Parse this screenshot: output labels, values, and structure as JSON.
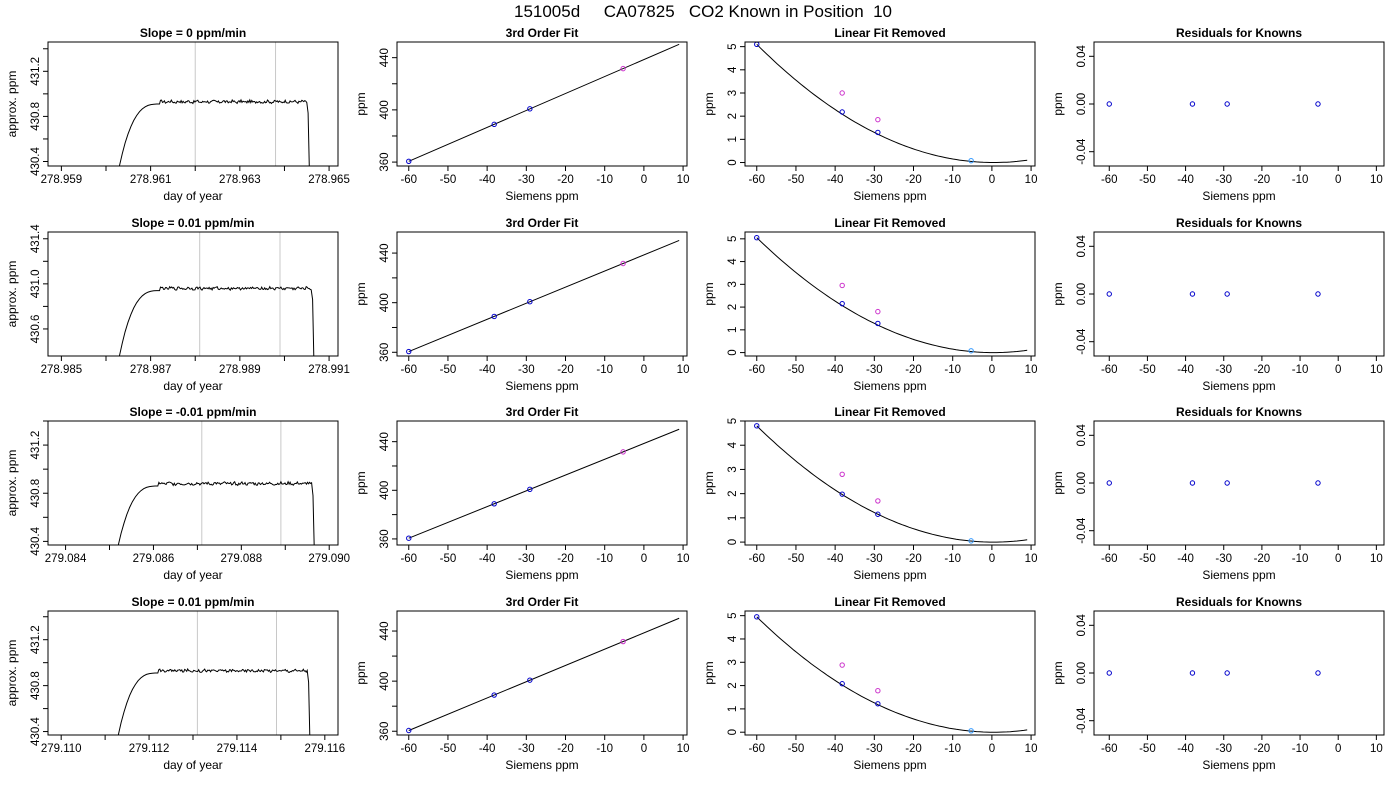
{
  "title": "151005d     CA07825   CO2 Known in Position  10",
  "colors": {
    "line": "#000000",
    "grid_vline": "#c8c8c8",
    "known_point": "#0000cc",
    "ref_point": "#cc33cc",
    "near_zero_point": "#3399ff"
  },
  "chart_data": [
    {
      "panel": "row1-trace",
      "type": "line",
      "title": "Slope =  0  ppm/min",
      "xlabel": "day of year",
      "ylabel": "approx. ppm",
      "xlim": [
        278.9587,
        278.9652
      ],
      "ylim": [
        430.36,
        431.46
      ],
      "xticks": [
        278.959,
        278.961,
        278.963,
        278.965
      ],
      "xticklabels": [
        "278.959",
        "278.961",
        "278.963",
        "278.965"
      ],
      "xminor": [
        278.96,
        278.962,
        278.964
      ],
      "yticks": [
        430.4,
        430.8,
        431.2
      ],
      "yticklabels": [
        "430.4",
        "430.8",
        "431.2"
      ],
      "yminor": [
        430.6,
        431.0,
        431.4
      ],
      "vlines": [
        278.962,
        278.9638
      ],
      "trace": {
        "start": 278.9603,
        "rise_end": 278.9608,
        "plateau_start": 278.9612,
        "end": 278.9645,
        "level": 430.93,
        "base": 430.36,
        "noise": 0.012
      }
    },
    {
      "panel": "row1-fit",
      "type": "scatter",
      "title": "3rd Order Fit",
      "xlabel": "Siemens ppm",
      "ylabel": "ppm",
      "xlim": [
        -63,
        11
      ],
      "ylim": [
        357,
        452
      ],
      "xticks": [
        -60,
        -50,
        -40,
        -30,
        -20,
        -10,
        0,
        10
      ],
      "xticklabels": [
        "-60",
        "-50",
        "-40",
        "-30",
        "-20",
        "-10",
        "0",
        "10"
      ],
      "yticks": [
        360,
        400,
        440
      ],
      "yticklabels": [
        "360",
        "400",
        "440"
      ],
      "yminor": [
        380,
        420
      ],
      "line": {
        "x": [
          -60,
          9
        ],
        "y": [
          360.6,
          450.2
        ]
      },
      "points": [
        {
          "x": -60.0,
          "y": 360.6,
          "kind": "known"
        },
        {
          "x": -38.2,
          "y": 388.9,
          "kind": "known"
        },
        {
          "x": -29.1,
          "y": 400.8,
          "kind": "known"
        },
        {
          "x": -5.3,
          "y": 431.6,
          "kind": "ref"
        }
      ]
    },
    {
      "panel": "row1-linear",
      "type": "scatter",
      "title": "Linear Fit Removed",
      "xlabel": "Siemens ppm",
      "ylabel": "ppm",
      "xlim": [
        -63,
        11
      ],
      "ylim": [
        -0.15,
        5.2
      ],
      "xticks": [
        -60,
        -50,
        -40,
        -30,
        -20,
        -10,
        0,
        10
      ],
      "xticklabels": [
        "-60",
        "-50",
        "-40",
        "-30",
        "-20",
        "-10",
        "0",
        "10"
      ],
      "yticks": [
        0,
        1,
        2,
        3,
        4,
        5
      ],
      "yticklabels": [
        "0",
        "1",
        "2",
        "3",
        "4",
        "5"
      ],
      "curve": {
        "x0": 0.5,
        "x_start": -60,
        "x_end": 9,
        "y_at_start": 5.1
      },
      "points": [
        {
          "x": -60.0,
          "y": 5.1,
          "kind": "known"
        },
        {
          "x": -38.2,
          "y": 2.18,
          "kind": "known"
        },
        {
          "x": -29.1,
          "y": 1.3,
          "kind": "known"
        },
        {
          "x": -5.3,
          "y": 0.08,
          "kind": "near_zero"
        },
        {
          "x": -38.2,
          "y": 3.0,
          "kind": "ref"
        },
        {
          "x": -29.1,
          "y": 1.85,
          "kind": "ref"
        }
      ]
    },
    {
      "panel": "row1-resid",
      "type": "scatter",
      "title": "Residuals for Knowns",
      "xlabel": "Siemens ppm",
      "ylabel": "ppm",
      "xlim": [
        -64,
        12
      ],
      "ylim": [
        -0.052,
        0.052
      ],
      "xticks": [
        -60,
        -50,
        -40,
        -30,
        -20,
        -10,
        0,
        10
      ],
      "xticklabels": [
        "-60",
        "-50",
        "-40",
        "-30",
        "-20",
        "-10",
        "0",
        "10"
      ],
      "yticks": [
        -0.04,
        0.0,
        0.04
      ],
      "yticklabels": [
        "-0.04",
        "0.00",
        "0.04"
      ],
      "points": [
        {
          "x": -60.0,
          "y": 0.0,
          "kind": "known"
        },
        {
          "x": -38.2,
          "y": 0.0,
          "kind": "known"
        },
        {
          "x": -29.1,
          "y": 0.0,
          "kind": "known"
        },
        {
          "x": -5.3,
          "y": 0.0,
          "kind": "known"
        }
      ]
    },
    {
      "panel": "row2-trace",
      "type": "line",
      "title": "Slope =  0.01  ppm/min",
      "xlabel": "day of year",
      "ylabel": "approx. ppm",
      "xlim": [
        278.9847,
        278.9912
      ],
      "ylim": [
        430.36,
        431.46
      ],
      "xticks": [
        278.985,
        278.987,
        278.989,
        278.991
      ],
      "xticklabels": [
        "278.985",
        "278.987",
        "278.989",
        "278.991"
      ],
      "xminor": [
        278.986,
        278.988,
        278.99
      ],
      "yticks": [
        430.6,
        431.0,
        431.4
      ],
      "yticklabels": [
        "430.6",
        "431.0",
        "431.4"
      ],
      "yminor": [
        430.8,
        431.2
      ],
      "vlines": [
        278.9881,
        278.9899
      ],
      "trace": {
        "start": 278.9863,
        "rise_end": 278.9868,
        "plateau_start": 278.9872,
        "end": 278.9906,
        "level": 430.96,
        "base": 430.36,
        "noise": 0.012
      }
    },
    {
      "panel": "row2-fit",
      "type": "scatter",
      "title": "3rd Order Fit",
      "xlabel": "Siemens ppm",
      "ylabel": "ppm",
      "xlim": [
        -63,
        11
      ],
      "ylim": [
        357,
        457
      ],
      "xticks": [
        -60,
        -50,
        -40,
        -30,
        -20,
        -10,
        0,
        10
      ],
      "xticklabels": [
        "-60",
        "-50",
        "-40",
        "-30",
        "-20",
        "-10",
        "0",
        "10"
      ],
      "yticks": [
        360,
        400,
        440
      ],
      "yticklabels": [
        "360",
        "400",
        "440"
      ],
      "yminor": [
        380,
        420
      ],
      "line": {
        "x": [
          -60,
          9
        ],
        "y": [
          360.6,
          450.2
        ]
      },
      "points": [
        {
          "x": -60.0,
          "y": 360.6,
          "kind": "known"
        },
        {
          "x": -38.2,
          "y": 388.9,
          "kind": "known"
        },
        {
          "x": -29.1,
          "y": 400.8,
          "kind": "known"
        },
        {
          "x": -5.3,
          "y": 431.6,
          "kind": "ref"
        }
      ]
    },
    {
      "panel": "row2-linear",
      "type": "scatter",
      "title": "Linear Fit Removed",
      "xlabel": "Siemens ppm",
      "ylabel": "ppm",
      "xlim": [
        -63,
        11
      ],
      "ylim": [
        -0.15,
        5.3
      ],
      "xticks": [
        -60,
        -50,
        -40,
        -30,
        -20,
        -10,
        0,
        10
      ],
      "xticklabels": [
        "-60",
        "-50",
        "-40",
        "-30",
        "-20",
        "-10",
        "0",
        "10"
      ],
      "yticks": [
        0,
        1,
        2,
        3,
        4,
        5
      ],
      "yticklabels": [
        "0",
        "1",
        "2",
        "3",
        "4",
        "5"
      ],
      "curve": {
        "x0": 0.5,
        "x_start": -60,
        "x_end": 9,
        "y_at_start": 5.05
      },
      "points": [
        {
          "x": -60.0,
          "y": 5.05,
          "kind": "known"
        },
        {
          "x": -38.2,
          "y": 2.15,
          "kind": "known"
        },
        {
          "x": -29.1,
          "y": 1.28,
          "kind": "known"
        },
        {
          "x": -5.3,
          "y": 0.08,
          "kind": "near_zero"
        },
        {
          "x": -38.2,
          "y": 2.95,
          "kind": "ref"
        },
        {
          "x": -29.1,
          "y": 1.8,
          "kind": "ref"
        }
      ]
    },
    {
      "panel": "row2-resid",
      "type": "scatter",
      "title": "Residuals for Knowns",
      "xlabel": "Siemens ppm",
      "ylabel": "ppm",
      "xlim": [
        -64,
        12
      ],
      "ylim": [
        -0.052,
        0.052
      ],
      "xticks": [
        -60,
        -50,
        -40,
        -30,
        -20,
        -10,
        0,
        10
      ],
      "xticklabels": [
        "-60",
        "-50",
        "-40",
        "-30",
        "-20",
        "-10",
        "0",
        "10"
      ],
      "yticks": [
        -0.04,
        0.0,
        0.04
      ],
      "yticklabels": [
        "-0.04",
        "0.00",
        "0.04"
      ],
      "points": [
        {
          "x": -60.0,
          "y": 0.0,
          "kind": "known"
        },
        {
          "x": -38.2,
          "y": 0.0,
          "kind": "known"
        },
        {
          "x": -29.1,
          "y": 0.0,
          "kind": "known"
        },
        {
          "x": -5.3,
          "y": 0.0,
          "kind": "known"
        }
      ]
    },
    {
      "panel": "row3-trace",
      "type": "line",
      "title": "Slope =  -0.01  ppm/min",
      "xlabel": "day of year",
      "ylabel": "approx. ppm",
      "xlim": [
        279.0836,
        279.0902
      ],
      "ylim": [
        430.37,
        431.4
      ],
      "xticks": [
        279.084,
        279.086,
        279.088,
        279.09
      ],
      "xticklabels": [
        "279.084",
        "279.086",
        "279.088",
        "279.090"
      ],
      "xminor": [
        279.085,
        279.087,
        279.089
      ],
      "yticks": [
        430.4,
        430.8,
        431.2
      ],
      "yticklabels": [
        "430.4",
        "430.8",
        "431.2"
      ],
      "yminor": [
        430.6,
        431.0,
        431.4
      ],
      "vlines": [
        279.0871,
        279.0889
      ],
      "trace": {
        "start": 279.0852,
        "rise_end": 279.0856,
        "plateau_start": 279.0861,
        "end": 279.0896,
        "level": 430.88,
        "base": 430.37,
        "noise": 0.012
      }
    },
    {
      "panel": "row3-fit",
      "type": "scatter",
      "title": "3rd Order Fit",
      "xlabel": "Siemens ppm",
      "ylabel": "ppm",
      "xlim": [
        -63,
        11
      ],
      "ylim": [
        355,
        457
      ],
      "xticks": [
        -60,
        -50,
        -40,
        -30,
        -20,
        -10,
        0,
        10
      ],
      "xticklabels": [
        "-60",
        "-50",
        "-40",
        "-30",
        "-20",
        "-10",
        "0",
        "10"
      ],
      "yticks": [
        360,
        400,
        440
      ],
      "yticklabels": [
        "360",
        "400",
        "440"
      ],
      "yminor": [
        380,
        420
      ],
      "line": {
        "x": [
          -60,
          9
        ],
        "y": [
          360.6,
          450.2
        ]
      },
      "points": [
        {
          "x": -60.0,
          "y": 360.6,
          "kind": "known"
        },
        {
          "x": -38.2,
          "y": 388.9,
          "kind": "known"
        },
        {
          "x": -29.1,
          "y": 400.8,
          "kind": "known"
        },
        {
          "x": -5.3,
          "y": 431.6,
          "kind": "ref"
        }
      ]
    },
    {
      "panel": "row3-linear",
      "type": "scatter",
      "title": "Linear Fit Removed",
      "xlabel": "Siemens ppm",
      "ylabel": "ppm",
      "xlim": [
        -63,
        11
      ],
      "ylim": [
        -0.12,
        5.0
      ],
      "xticks": [
        -60,
        -50,
        -40,
        -30,
        -20,
        -10,
        0,
        10
      ],
      "xticklabels": [
        "-60",
        "-50",
        "-40",
        "-30",
        "-20",
        "-10",
        "0",
        "10"
      ],
      "yticks": [
        0,
        1,
        2,
        3,
        4,
        5
      ],
      "yticklabels": [
        "0",
        "1",
        "2",
        "3",
        "4",
        "5"
      ],
      "curve": {
        "x0": 0.5,
        "x_start": -60,
        "x_end": 9,
        "y_at_start": 4.8
      },
      "points": [
        {
          "x": -60.0,
          "y": 4.8,
          "kind": "known"
        },
        {
          "x": -38.2,
          "y": 1.98,
          "kind": "known"
        },
        {
          "x": -29.1,
          "y": 1.15,
          "kind": "known"
        },
        {
          "x": -5.3,
          "y": 0.05,
          "kind": "near_zero"
        },
        {
          "x": -38.2,
          "y": 2.8,
          "kind": "ref"
        },
        {
          "x": -29.1,
          "y": 1.7,
          "kind": "ref"
        }
      ]
    },
    {
      "panel": "row3-resid",
      "type": "scatter",
      "title": "Residuals for Knowns",
      "xlabel": "Siemens ppm",
      "ylabel": "ppm",
      "xlim": [
        -64,
        12
      ],
      "ylim": [
        -0.052,
        0.052
      ],
      "xticks": [
        -60,
        -50,
        -40,
        -30,
        -20,
        -10,
        0,
        10
      ],
      "xticklabels": [
        "-60",
        "-50",
        "-40",
        "-30",
        "-20",
        "-10",
        "0",
        "10"
      ],
      "yticks": [
        -0.04,
        0.0,
        0.04
      ],
      "yticklabels": [
        "-0.04",
        "0.00",
        "0.04"
      ],
      "points": [
        {
          "x": -60.0,
          "y": 0.0,
          "kind": "known"
        },
        {
          "x": -38.2,
          "y": 0.0,
          "kind": "known"
        },
        {
          "x": -29.1,
          "y": 0.0,
          "kind": "known"
        },
        {
          "x": -5.3,
          "y": 0.0,
          "kind": "known"
        }
      ]
    },
    {
      "panel": "row4-trace",
      "type": "line",
      "title": "Slope =  0.01  ppm/min",
      "xlabel": "day of year",
      "ylabel": "approx. ppm",
      "xlim": [
        279.1097,
        279.1163
      ],
      "ylim": [
        430.37,
        431.45
      ],
      "xticks": [
        279.11,
        279.112,
        279.114,
        279.116
      ],
      "xticklabels": [
        "279.110",
        "279.112",
        "279.114",
        "279.116"
      ],
      "xminor": [
        279.111,
        279.113,
        279.115
      ],
      "yticks": [
        430.4,
        430.8,
        431.2
      ],
      "yticklabels": [
        "430.4",
        "430.8",
        "431.2"
      ],
      "yminor": [
        430.6,
        431.0,
        431.4
      ],
      "vlines": [
        279.1131,
        279.1149
      ],
      "trace": {
        "start": 279.1113,
        "rise_end": 279.1117,
        "plateau_start": 279.1122,
        "end": 279.1156,
        "level": 430.93,
        "base": 430.37,
        "noise": 0.012
      }
    },
    {
      "panel": "row4-fit",
      "type": "scatter",
      "title": "3rd Order Fit",
      "xlabel": "Siemens ppm",
      "ylabel": "ppm",
      "xlim": [
        -63,
        11
      ],
      "ylim": [
        357,
        456
      ],
      "xticks": [
        -60,
        -50,
        -40,
        -30,
        -20,
        -10,
        0,
        10
      ],
      "xticklabels": [
        "-60",
        "-50",
        "-40",
        "-30",
        "-20",
        "-10",
        "0",
        "10"
      ],
      "yticks": [
        360,
        400,
        440
      ],
      "yticklabels": [
        "360",
        "400",
        "440"
      ],
      "yminor": [
        380,
        420
      ],
      "line": {
        "x": [
          -60,
          9
        ],
        "y": [
          360.6,
          450.2
        ]
      },
      "points": [
        {
          "x": -60.0,
          "y": 360.6,
          "kind": "known"
        },
        {
          "x": -38.2,
          "y": 388.9,
          "kind": "known"
        },
        {
          "x": -29.1,
          "y": 400.8,
          "kind": "known"
        },
        {
          "x": -5.3,
          "y": 431.6,
          "kind": "ref"
        }
      ]
    },
    {
      "panel": "row4-linear",
      "type": "scatter",
      "title": "Linear Fit Removed",
      "xlabel": "Siemens ppm",
      "ylabel": "ppm",
      "xlim": [
        -63,
        11
      ],
      "ylim": [
        -0.12,
        5.2
      ],
      "xticks": [
        -60,
        -50,
        -40,
        -30,
        -20,
        -10,
        0,
        10
      ],
      "xticklabels": [
        "-60",
        "-50",
        "-40",
        "-30",
        "-20",
        "-10",
        "0",
        "10"
      ],
      "yticks": [
        0,
        1,
        2,
        3,
        4,
        5
      ],
      "yticklabels": [
        "0",
        "1",
        "2",
        "3",
        "4",
        "5"
      ],
      "curve": {
        "x0": 0.5,
        "x_start": -60,
        "x_end": 9,
        "y_at_start": 4.95
      },
      "points": [
        {
          "x": -60.0,
          "y": 4.95,
          "kind": "known"
        },
        {
          "x": -38.2,
          "y": 2.08,
          "kind": "known"
        },
        {
          "x": -29.1,
          "y": 1.22,
          "kind": "known"
        },
        {
          "x": -5.3,
          "y": 0.06,
          "kind": "near_zero"
        },
        {
          "x": -38.2,
          "y": 2.88,
          "kind": "ref"
        },
        {
          "x": -29.1,
          "y": 1.78,
          "kind": "ref"
        }
      ]
    },
    {
      "panel": "row4-resid",
      "type": "scatter",
      "title": "Residuals for Knowns",
      "xlabel": "Siemens ppm",
      "ylabel": "ppm",
      "xlim": [
        -64,
        12
      ],
      "ylim": [
        -0.052,
        0.052
      ],
      "xticks": [
        -60,
        -50,
        -40,
        -30,
        -20,
        -10,
        0,
        10
      ],
      "xticklabels": [
        "-60",
        "-50",
        "-40",
        "-30",
        "-20",
        "-10",
        "0",
        "10"
      ],
      "yticks": [
        -0.04,
        0.0,
        0.04
      ],
      "yticklabels": [
        "-0.04",
        "0.00",
        "0.04"
      ],
      "points": [
        {
          "x": -60.0,
          "y": 0.0,
          "kind": "known"
        },
        {
          "x": -38.2,
          "y": 0.0,
          "kind": "known"
        },
        {
          "x": -29.1,
          "y": 0.0,
          "kind": "known"
        },
        {
          "x": -5.3,
          "y": 0.0,
          "kind": "known"
        }
      ]
    }
  ]
}
